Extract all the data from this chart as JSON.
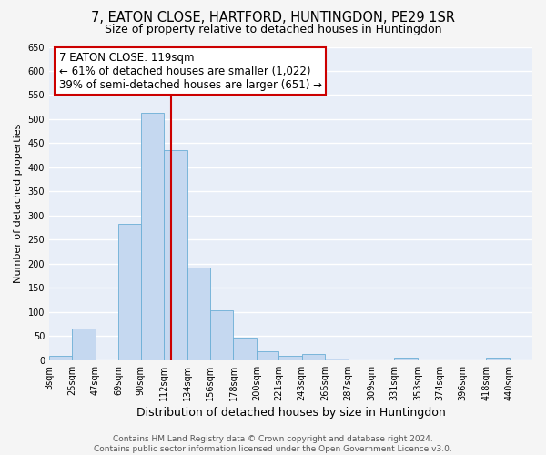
{
  "title": "7, EATON CLOSE, HARTFORD, HUNTINGDON, PE29 1SR",
  "subtitle": "Size of property relative to detached houses in Huntingdon",
  "xlabel": "Distribution of detached houses by size in Huntingdon",
  "ylabel": "Number of detached properties",
  "bar_left_edges": [
    3,
    25,
    47,
    69,
    90,
    112,
    134,
    156,
    178,
    200,
    221,
    243,
    265,
    287,
    309,
    331,
    353,
    374,
    396,
    418
  ],
  "bar_heights": [
    10,
    65,
    0,
    283,
    513,
    435,
    192,
    103,
    47,
    19,
    10,
    13,
    3,
    0,
    0,
    5,
    0,
    0,
    0,
    5
  ],
  "bar_widths": [
    22,
    22,
    22,
    21,
    22,
    22,
    22,
    22,
    22,
    21,
    22,
    22,
    22,
    22,
    22,
    22,
    21,
    22,
    22,
    22
  ],
  "bar_color": "#c5d8f0",
  "bar_edgecolor": "#6baed6",
  "vline_x": 119,
  "vline_color": "#cc0000",
  "ylim": [
    0,
    650
  ],
  "yticks": [
    0,
    50,
    100,
    150,
    200,
    250,
    300,
    350,
    400,
    450,
    500,
    550,
    600,
    650
  ],
  "xtick_labels": [
    "3sqm",
    "25sqm",
    "47sqm",
    "69sqm",
    "90sqm",
    "112sqm",
    "134sqm",
    "156sqm",
    "178sqm",
    "200sqm",
    "221sqm",
    "243sqm",
    "265sqm",
    "287sqm",
    "309sqm",
    "331sqm",
    "353sqm",
    "374sqm",
    "396sqm",
    "418sqm",
    "440sqm"
  ],
  "xtick_positions": [
    3,
    25,
    47,
    69,
    90,
    112,
    134,
    156,
    178,
    200,
    221,
    243,
    265,
    287,
    309,
    331,
    353,
    374,
    396,
    418,
    440
  ],
  "annotation_title": "7 EATON CLOSE: 119sqm",
  "annotation_line1": "← 61% of detached houses are smaller (1,022)",
  "annotation_line2": "39% of semi-detached houses are larger (651) →",
  "annotation_box_color": "#ffffff",
  "annotation_box_edgecolor": "#cc0000",
  "footer_line1": "Contains HM Land Registry data © Crown copyright and database right 2024.",
  "footer_line2": "Contains public sector information licensed under the Open Government Licence v3.0.",
  "bg_color": "#e8eef8",
  "grid_color": "#ffffff",
  "xlim_left": 3,
  "xlim_right": 462,
  "title_fontsize": 10.5,
  "subtitle_fontsize": 9,
  "xlabel_fontsize": 9,
  "ylabel_fontsize": 8,
  "tick_fontsize": 7,
  "annotation_title_fontsize": 9,
  "annotation_body_fontsize": 8.5,
  "footer_fontsize": 6.5
}
